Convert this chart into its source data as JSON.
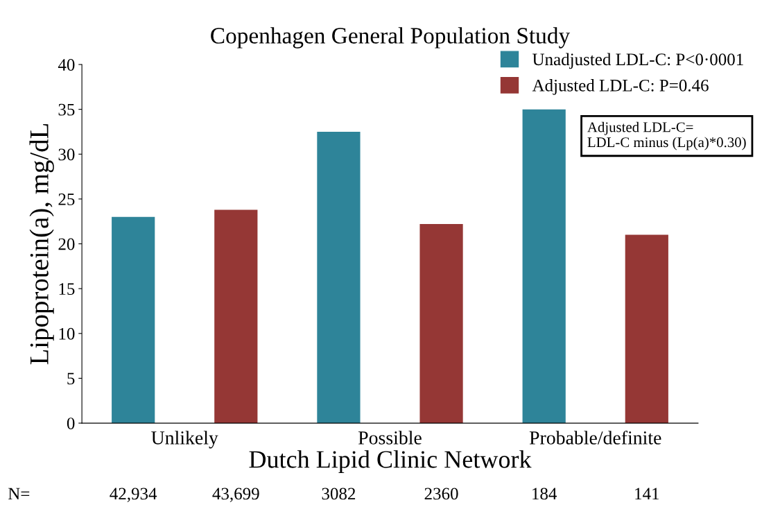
{
  "chart_data": {
    "type": "bar",
    "title": "Copenhagen General Population Study",
    "xlabel": "Dutch Lipid Clinic Network",
    "ylabel": "Lipoprotein(a), mg/dL",
    "categories": [
      "Unlikely",
      "Possible",
      "Probable/definite"
    ],
    "series": [
      {
        "name": "Unadjusted LDL-C: P<0·0001",
        "color": "#2e8499",
        "values": [
          23.0,
          32.5,
          35.0
        ]
      },
      {
        "name": "Adjusted LDL-C: P=0.46",
        "color": "#953735",
        "values": [
          23.8,
          22.2,
          21.0
        ]
      }
    ],
    "ylim": [
      0,
      40
    ],
    "yticks": [
      0,
      5,
      10,
      15,
      20,
      25,
      30,
      35,
      40
    ],
    "grid": false,
    "legend": "top right",
    "annotations": [
      "Adjusted LDL-C=\nLDL-C minus (Lp(a)*0.30)",
      "N=",
      "42,934",
      "43,699",
      "3082",
      "2360",
      "184",
      "141"
    ]
  }
}
